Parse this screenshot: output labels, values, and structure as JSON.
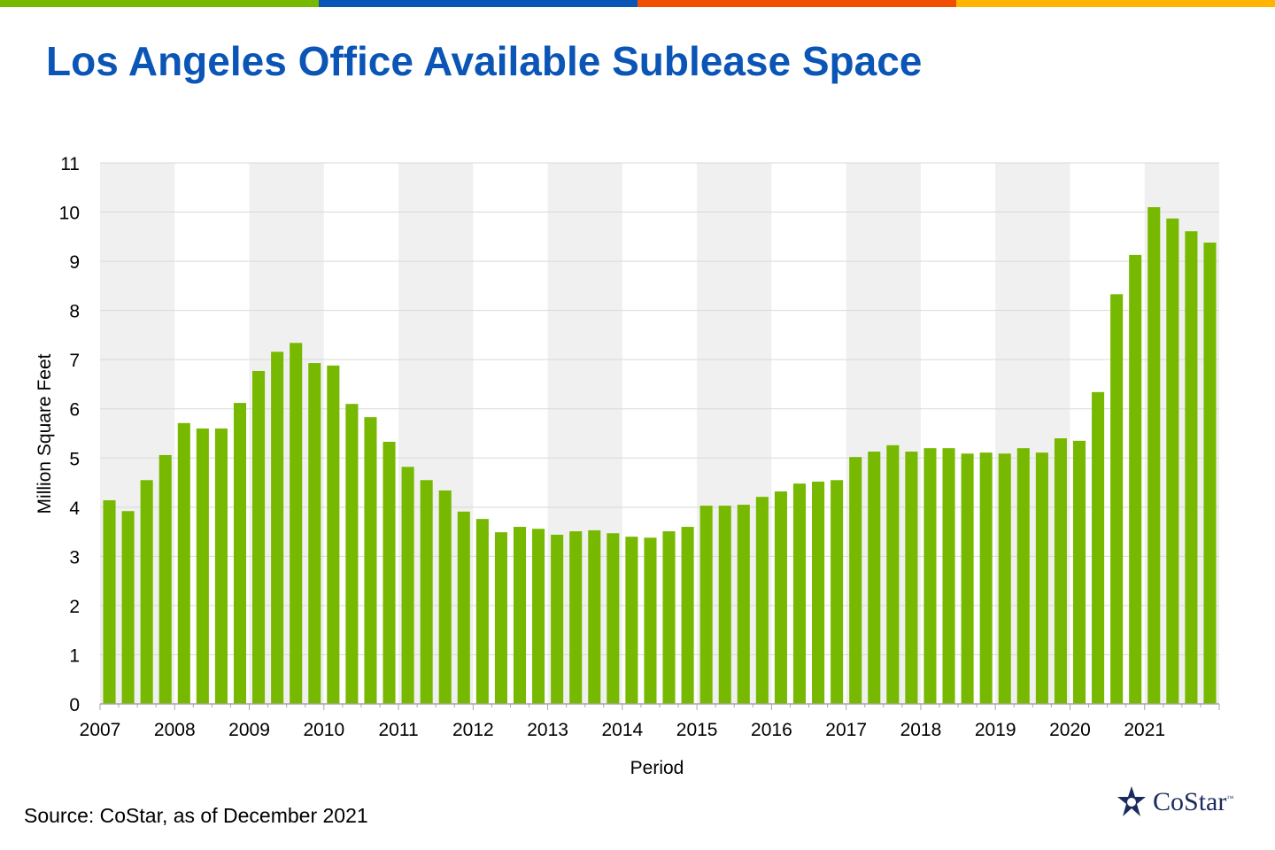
{
  "colors": {
    "stripe": [
      "#76b900",
      "#0a55b5",
      "#f04e00",
      "#ffb400"
    ],
    "bar": "#76b900",
    "title": "#0a55b5",
    "band": "#f0f0f0"
  },
  "title": "Los Angeles Office Available Sublease Space",
  "source": "Source: CoStar, as of December 2021",
  "logo": {
    "text": "CoStar",
    "tm": "™"
  },
  "chart_data": {
    "type": "bar",
    "title": "Los Angeles Office Available Sublease Space",
    "xlabel": "Period",
    "ylabel": "Million Square Feet",
    "ylim": [
      0,
      11
    ],
    "yticks": [
      "0",
      "1",
      "2",
      "3",
      "4",
      "5",
      "6",
      "7",
      "8",
      "9",
      "10",
      "11"
    ],
    "xticks": [
      "2007",
      "2008",
      "2009",
      "2010",
      "2011",
      "2012",
      "2013",
      "2014",
      "2015",
      "2016",
      "2017",
      "2018",
      "2019",
      "2020",
      "2021"
    ],
    "periods_per_year": 4,
    "grid": true,
    "values": [
      4.14,
      3.92,
      4.55,
      5.06,
      5.71,
      5.6,
      5.6,
      6.12,
      6.77,
      7.16,
      7.34,
      6.93,
      6.88,
      6.1,
      5.83,
      5.33,
      4.82,
      4.55,
      4.34,
      3.91,
      3.76,
      3.49,
      3.6,
      3.56,
      3.44,
      3.51,
      3.53,
      3.47,
      3.4,
      3.38,
      3.51,
      3.6,
      4.03,
      4.03,
      4.05,
      4.21,
      4.32,
      4.48,
      4.52,
      4.55,
      5.02,
      5.13,
      5.26,
      5.13,
      5.2,
      5.2,
      5.09,
      5.11,
      5.09,
      5.2,
      5.11,
      5.4,
      5.35,
      6.34,
      8.33,
      9.13,
      10.1,
      9.87,
      9.61,
      9.38
    ]
  }
}
